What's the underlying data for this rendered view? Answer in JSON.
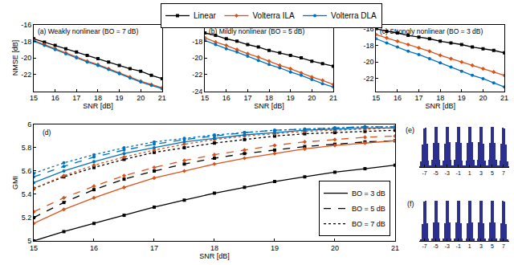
{
  "chart_data": [
    {
      "type": "line",
      "title": "(a) Weakly nonlinear (BO = 7 dB)",
      "xlabel": "SNR [dB]",
      "ylabel": "NMSE [dB]",
      "x": [
        15,
        15.5,
        16,
        16.5,
        17,
        17.5,
        18,
        18.5,
        19,
        19.5,
        20,
        20.5,
        21
      ],
      "xlim": [
        15,
        21
      ],
      "xticks": [
        15,
        16,
        17,
        18,
        19,
        20,
        21
      ],
      "ylim": [
        -24,
        -16
      ],
      "yticks": [
        -22,
        -20,
        -18,
        -16
      ],
      "grid": false,
      "legend": "top",
      "series": [
        {
          "name": "Linear",
          "color": "#000000",
          "marker": "square",
          "line_style": "solid",
          "values": [
            -17.7,
            -18.1,
            -18.5,
            -18.9,
            -19.3,
            -19.7,
            -20.1,
            -20.5,
            -20.9,
            -21.3,
            -21.6,
            -22.1,
            -22.5
          ]
        },
        {
          "name": "Volterra ILA",
          "color": "#d95319",
          "marker": "diamond",
          "line_style": "solid",
          "values": [
            -17.9,
            -18.4,
            -18.9,
            -19.4,
            -19.9,
            -20.4,
            -20.8,
            -21.3,
            -21.8,
            -22.3,
            -22.8,
            -23.2,
            -23.6
          ]
        },
        {
          "name": "Volterra DLA",
          "color": "#0072bd",
          "marker": "circle",
          "line_style": "solid",
          "values": [
            -18.0,
            -18.5,
            -19.0,
            -19.5,
            -20.0,
            -20.5,
            -20.9,
            -21.4,
            -21.9,
            -22.4,
            -22.9,
            -23.3,
            -23.7
          ]
        }
      ]
    },
    {
      "type": "line",
      "title": "(b) Mildly nonlinear (BO = 5 dB)",
      "xlabel": "SNR [dB]",
      "x": [
        15,
        15.5,
        16,
        16.5,
        17,
        17.5,
        18,
        18.5,
        19,
        19.5,
        20,
        20.5,
        21
      ],
      "xlim": [
        15,
        21
      ],
      "xticks": [
        15,
        16,
        17,
        18,
        19,
        20,
        21
      ],
      "ylim": [
        -24,
        -16
      ],
      "yticks": [
        -24,
        -22,
        -20,
        -18
      ],
      "grid": false,
      "series": [
        {
          "name": "Linear",
          "color": "#000000",
          "marker": "square",
          "line_style": "solid",
          "values": [
            -17.0,
            -17.3,
            -17.7,
            -18.0,
            -18.4,
            -18.7,
            -19.1,
            -19.4,
            -19.7,
            -20.0,
            -20.4,
            -20.7,
            -21.0
          ]
        },
        {
          "name": "Volterra ILA",
          "color": "#d95319",
          "marker": "diamond",
          "line_style": "solid",
          "values": [
            -17.6,
            -18.1,
            -18.5,
            -19.0,
            -19.5,
            -19.9,
            -20.4,
            -20.9,
            -21.3,
            -21.8,
            -22.3,
            -22.7,
            -23.2
          ]
        },
        {
          "name": "Volterra DLA",
          "color": "#0072bd",
          "marker": "circle",
          "line_style": "solid",
          "values": [
            -17.9,
            -18.4,
            -18.9,
            -19.3,
            -19.8,
            -20.3,
            -20.8,
            -21.2,
            -21.7,
            -22.1,
            -22.6,
            -23.1,
            -23.5
          ]
        }
      ]
    },
    {
      "type": "line",
      "title": "(c) Strongly nonlinear (BO = 3 dB)",
      "xlabel": "SNR [dB]",
      "x": [
        15,
        15.5,
        16,
        16.5,
        17,
        17.5,
        18,
        18.5,
        19,
        19.5,
        20,
        20.5,
        21
      ],
      "xlim": [
        15,
        21
      ],
      "xticks": [
        15,
        16,
        17,
        18,
        19,
        20,
        21
      ],
      "ylim": [
        -23.5,
        -15.5
      ],
      "yticks": [
        -22,
        -20,
        -18,
        -16
      ],
      "grid": false,
      "series": [
        {
          "name": "Linear",
          "color": "#000000",
          "marker": "square",
          "line_style": "solid",
          "values": [
            -16.0,
            -16.3,
            -16.5,
            -16.8,
            -17.0,
            -17.2,
            -17.5,
            -17.7,
            -17.9,
            -18.2,
            -18.4,
            -18.6,
            -18.9
          ]
        },
        {
          "name": "Volterra ILA",
          "color": "#d95319",
          "marker": "diamond",
          "line_style": "solid",
          "values": [
            -16.7,
            -17.1,
            -17.5,
            -17.9,
            -18.3,
            -18.7,
            -19.2,
            -19.6,
            -20.0,
            -20.4,
            -20.8,
            -21.2,
            -21.6
          ]
        },
        {
          "name": "Volterra DLA",
          "color": "#0072bd",
          "marker": "circle",
          "line_style": "solid",
          "values": [
            -17.2,
            -17.7,
            -18.2,
            -18.7,
            -19.1,
            -19.6,
            -20.1,
            -20.6,
            -21.1,
            -21.6,
            -22.0,
            -22.5,
            -23.0
          ]
        }
      ]
    },
    {
      "type": "line",
      "title": "(d)",
      "xlabel": "SNR [dB]",
      "ylabel": "GMI",
      "x": [
        15,
        15.5,
        16,
        16.5,
        17,
        17.5,
        18,
        18.5,
        19,
        19.5,
        20,
        20.5,
        21
      ],
      "xlim": [
        15,
        21
      ],
      "xticks": [
        15,
        16,
        17,
        18,
        19,
        20,
        21
      ],
      "ylim": [
        5,
        6
      ],
      "yticks": [
        5,
        5.2,
        5.4,
        5.6,
        5.8,
        6
      ],
      "grid": false,
      "legend": "bottom right",
      "series": [
        {
          "method": "Linear",
          "bo": "BO = 3 dB",
          "color": "#000000",
          "marker": "square",
          "line_style": "solid",
          "values": [
            5.0,
            5.08,
            5.15,
            5.22,
            5.29,
            5.35,
            5.41,
            5.46,
            5.51,
            5.55,
            5.59,
            5.62,
            5.65
          ]
        },
        {
          "method": "Linear",
          "bo": "BO = 5 dB",
          "color": "#000000",
          "marker": "square",
          "line_style": "dashed",
          "values": [
            5.2,
            5.33,
            5.44,
            5.53,
            5.6,
            5.66,
            5.71,
            5.75,
            5.78,
            5.81,
            5.83,
            5.85,
            5.86
          ]
        },
        {
          "method": "Linear",
          "bo": "BO = 7 dB",
          "color": "#000000",
          "marker": "square",
          "line_style": "dotted",
          "values": [
            5.45,
            5.55,
            5.63,
            5.7,
            5.76,
            5.8,
            5.84,
            5.87,
            5.9,
            5.92,
            5.93,
            5.94,
            5.95
          ]
        },
        {
          "method": "Volterra ILA",
          "bo": "BO = 3 dB",
          "color": "#d95319",
          "marker": "diamond",
          "line_style": "solid",
          "values": [
            5.15,
            5.27,
            5.37,
            5.46,
            5.54,
            5.6,
            5.66,
            5.71,
            5.75,
            5.79,
            5.82,
            5.84,
            5.86
          ]
        },
        {
          "method": "Volterra ILA",
          "bo": "BO = 5 dB",
          "color": "#d95319",
          "marker": "diamond",
          "line_style": "dashed",
          "values": [
            5.25,
            5.37,
            5.47,
            5.56,
            5.63,
            5.69,
            5.74,
            5.78,
            5.82,
            5.85,
            5.87,
            5.89,
            5.9
          ]
        },
        {
          "method": "Volterra ILA",
          "bo": "BO = 7 dB",
          "color": "#d95319",
          "marker": "diamond",
          "line_style": "dotted",
          "values": [
            5.45,
            5.56,
            5.65,
            5.72,
            5.78,
            5.83,
            5.87,
            5.9,
            5.92,
            5.94,
            5.95,
            5.96,
            5.97
          ]
        },
        {
          "method": "Volterra DLA",
          "bo": "BO = 3 dB",
          "color": "#0072bd",
          "marker": "circle",
          "line_style": "solid",
          "values": [
            5.5,
            5.6,
            5.68,
            5.75,
            5.8,
            5.85,
            5.88,
            5.91,
            5.93,
            5.95,
            5.96,
            5.97,
            5.97
          ]
        },
        {
          "method": "Volterra DLA",
          "bo": "BO = 5 dB",
          "color": "#0072bd",
          "marker": "circle",
          "line_style": "dashed",
          "values": [
            5.55,
            5.64,
            5.72,
            5.78,
            5.83,
            5.87,
            5.9,
            5.93,
            5.95,
            5.96,
            5.97,
            5.98,
            5.98
          ]
        },
        {
          "method": "Volterra DLA",
          "bo": "BO = 7 dB",
          "color": "#0072bd",
          "marker": "circle",
          "line_style": "dotted",
          "values": [
            5.58,
            5.67,
            5.74,
            5.8,
            5.85,
            5.88,
            5.91,
            5.93,
            5.95,
            5.96,
            5.97,
            5.98,
            5.98
          ]
        }
      ]
    },
    {
      "type": "histogram",
      "title": "(e)",
      "color": "#2b2f8f",
      "tick_labels": "x",
      "xlim": [
        -8,
        8
      ],
      "xticks": [
        -7,
        -5,
        -3,
        -1,
        1,
        3,
        5,
        7
      ],
      "ylim": [
        0,
        105
      ],
      "bins": [
        -8,
        -7.75,
        -7.5,
        -7.25,
        -7,
        -6.75,
        -6.5,
        -6.25,
        -6,
        -5.75,
        -5.5,
        -5.25,
        -5,
        -4.75,
        -4.5,
        -4.25,
        -4,
        -3.75,
        -3.5,
        -3.25,
        -3,
        -2.75,
        -2.5,
        -2.25,
        -2,
        -1.75,
        -1.5,
        -1.25,
        -1,
        -0.75,
        -0.5,
        -0.25,
        0,
        0.25,
        0.5,
        0.75,
        1,
        1.25,
        1.5,
        1.75,
        2,
        2.25,
        2.5,
        2.75,
        3,
        3.25,
        3.5,
        3.75,
        4,
        4.25,
        4.5,
        4.75,
        5,
        5.25,
        5.5,
        5.75,
        6,
        6.25,
        6.5,
        6.75,
        7,
        7.25,
        7.5,
        7.75,
        8
      ],
      "counts": [
        3,
        15,
        55,
        95,
        98,
        58,
        17,
        4,
        4,
        18,
        60,
        100,
        100,
        60,
        18,
        4,
        4,
        17,
        58,
        99,
        100,
        61,
        18,
        4,
        4,
        18,
        61,
        100,
        99,
        59,
        17,
        4,
        4,
        17,
        59,
        99,
        100,
        61,
        18,
        4,
        4,
        18,
        61,
        100,
        99,
        58,
        17,
        4,
        4,
        18,
        60,
        100,
        100,
        60,
        18,
        4,
        4,
        17,
        58,
        98,
        95,
        55,
        15,
        3
      ]
    },
    {
      "type": "histogram",
      "title": "(f)",
      "color": "#2b2f8f",
      "tick_labels": "x",
      "xlim": [
        -8,
        8
      ],
      "xticks": [
        -7,
        -5,
        -3,
        -1,
        1,
        3,
        5,
        7
      ],
      "ylim": [
        0,
        105
      ],
      "bins": [
        -8,
        -7.75,
        -7.5,
        -7.25,
        -7,
        -6.75,
        -6.5,
        -6.25,
        -6,
        -5.75,
        -5.5,
        -5.25,
        -5,
        -4.75,
        -4.5,
        -4.25,
        -4,
        -3.75,
        -3.5,
        -3.25,
        -3,
        -2.75,
        -2.5,
        -2.25,
        -2,
        -1.75,
        -1.5,
        -1.25,
        -1,
        -0.75,
        -0.5,
        -0.25,
        0,
        0.25,
        0.5,
        0.75,
        1,
        1.25,
        1.5,
        1.75,
        2,
        2.25,
        2.5,
        2.75,
        3,
        3.25,
        3.5,
        3.75,
        4,
        4.25,
        4.5,
        4.75,
        5,
        5.25,
        5.5,
        5.75,
        6,
        6.25,
        6.5,
        6.75,
        7,
        7.25,
        7.5,
        7.75,
        8
      ],
      "counts": [
        0,
        5,
        42,
        97,
        99,
        44,
        6,
        0,
        0,
        6,
        45,
        100,
        100,
        45,
        6,
        0,
        0,
        6,
        44,
        99,
        100,
        46,
        6,
        0,
        0,
        6,
        46,
        100,
        99,
        44,
        6,
        0,
        0,
        6,
        44,
        99,
        100,
        46,
        6,
        0,
        0,
        6,
        46,
        100,
        99,
        44,
        6,
        0,
        0,
        6,
        45,
        100,
        100,
        45,
        6,
        0,
        0,
        6,
        44,
        99,
        97,
        42,
        5,
        0
      ]
    }
  ]
}
